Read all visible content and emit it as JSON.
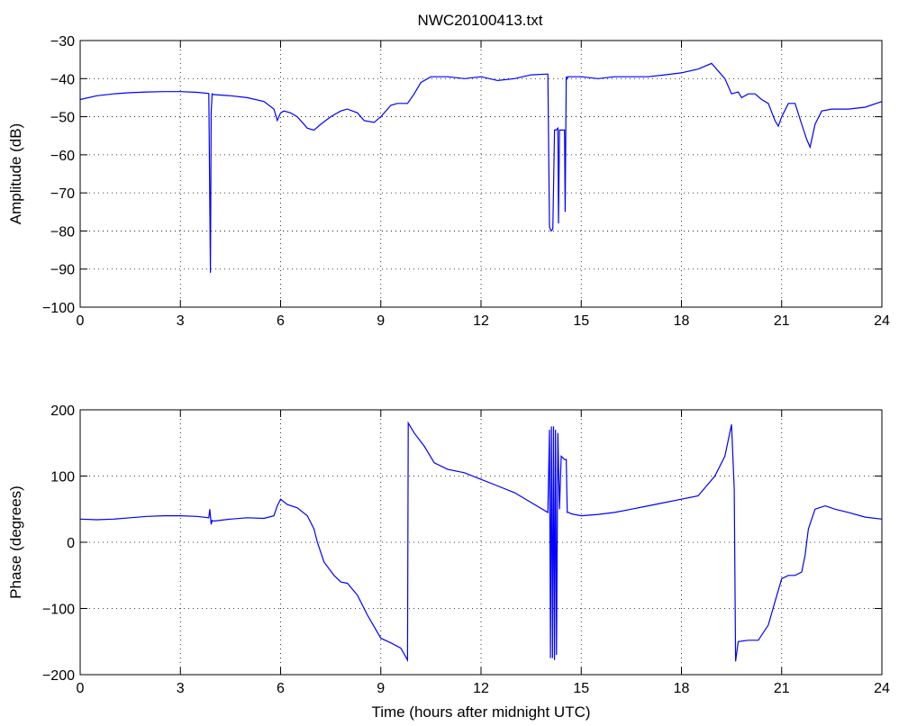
{
  "figure": {
    "title": "NWC20100413.txt",
    "line_color": "#0000ff"
  },
  "chart_data": [
    {
      "type": "line",
      "title": "NWC20100413.txt",
      "xlabel": "",
      "ylabel": "Amplitude (dB)",
      "xlim": [
        0,
        24
      ],
      "ylim": [
        -100,
        -30
      ],
      "xticks": [
        0,
        3,
        6,
        9,
        12,
        15,
        18,
        21,
        24
      ],
      "yticks": [
        -30,
        -40,
        -50,
        -60,
        -70,
        -80,
        -90,
        -100
      ],
      "grid": true,
      "series": [
        {
          "color": "#0000ff",
          "x": [
            0,
            0.5,
            1,
            1.5,
            2,
            2.5,
            3,
            3.5,
            3.85,
            3.9,
            3.92,
            3.95,
            4.0,
            4.5,
            5,
            5.5,
            5.8,
            5.9,
            6.0,
            6.1,
            6.3,
            6.5,
            6.8,
            7.0,
            7.2,
            7.5,
            7.8,
            8.0,
            8.3,
            8.5,
            8.8,
            9.0,
            9.3,
            9.5,
            9.8,
            10.0,
            10.2,
            10.5,
            11.0,
            11.5,
            12.0,
            12.5,
            13.0,
            13.5,
            14.0,
            14.05,
            14.1,
            14.15,
            14.2,
            14.25,
            14.3,
            14.32,
            14.35,
            14.4,
            14.5,
            14.52,
            14.55,
            14.58,
            14.6,
            15.0,
            15.5,
            16.0,
            16.5,
            17.0,
            17.5,
            18.0,
            18.5,
            18.9,
            19.1,
            19.3,
            19.5,
            19.7,
            19.8,
            20.0,
            20.2,
            20.4,
            20.6,
            20.8,
            20.9,
            21.0,
            21.2,
            21.4,
            21.6,
            21.75,
            21.85,
            22.0,
            22.2,
            22.5,
            23.0,
            23.5,
            24.0
          ],
          "y": [
            -45.5,
            -44.5,
            -44,
            -43.7,
            -43.5,
            -43.4,
            -43.4,
            -43.6,
            -43.9,
            -91,
            -49,
            -44,
            -44.2,
            -44.5,
            -45,
            -46,
            -48,
            -51,
            -49,
            -48.5,
            -49,
            -50,
            -53,
            -53.5,
            -52,
            -50,
            -48.5,
            -48,
            -49,
            -51,
            -51.5,
            -50,
            -47,
            -46.5,
            -46.5,
            -44,
            -41,
            -39.5,
            -39.5,
            -40,
            -39.5,
            -40.5,
            -40,
            -39,
            -38.8,
            -79,
            -80,
            -79.5,
            -53.5,
            -53.5,
            -53,
            -78,
            -53.5,
            -53.5,
            -53.5,
            -75,
            -39.5,
            -40,
            -39.5,
            -39.5,
            -40,
            -39.5,
            -39.5,
            -39.5,
            -39,
            -38.5,
            -37.5,
            -36,
            -38,
            -40,
            -44,
            -43.5,
            -45,
            -44,
            -44,
            -45.5,
            -46.5,
            -51,
            -52.5,
            -50,
            -46.5,
            -46.5,
            -52,
            -56,
            -58,
            -52,
            -48.5,
            -48,
            -48,
            -47.5,
            -46
          ]
        }
      ]
    },
    {
      "type": "line",
      "title": "",
      "xlabel": "Time (hours after midnight UTC)",
      "ylabel": "Phase (degrees)",
      "xlim": [
        0,
        24
      ],
      "ylim": [
        -200,
        200
      ],
      "xticks": [
        0,
        3,
        6,
        9,
        12,
        15,
        18,
        21,
        24
      ],
      "yticks": [
        200,
        100,
        0,
        -100,
        -200
      ],
      "grid": true,
      "series": [
        {
          "color": "#0000ff",
          "x": [
            0,
            0.5,
            1,
            1.5,
            2,
            2.5,
            3,
            3.5,
            3.85,
            3.88,
            3.92,
            3.95,
            4.0,
            4.5,
            5,
            5.5,
            5.8,
            5.9,
            6.0,
            6.2,
            6.5,
            6.8,
            7.0,
            7.1,
            7.3,
            7.6,
            7.8,
            8.0,
            8.3,
            8.6,
            9.0,
            9.3,
            9.6,
            9.8,
            9.82,
            10.0,
            10.3,
            10.6,
            11.0,
            11.5,
            12.0,
            12.5,
            13.0,
            13.5,
            14.0,
            14.05,
            14.08,
            14.11,
            14.14,
            14.17,
            14.2,
            14.23,
            14.26,
            14.3,
            14.35,
            14.4,
            14.5,
            14.55,
            14.58,
            14.62,
            14.7,
            15.0,
            15.5,
            16.0,
            16.5,
            17.0,
            17.5,
            18.0,
            18.5,
            19.0,
            19.3,
            19.5,
            19.58,
            19.62,
            19.7,
            20.0,
            20.3,
            20.6,
            20.8,
            21.0,
            21.2,
            21.4,
            21.6,
            21.7,
            21.8,
            22.0,
            22.3,
            22.6,
            23.0,
            23.5,
            24.0
          ],
          "y": [
            35,
            34,
            35,
            37,
            39,
            40,
            40,
            39,
            37,
            50,
            27,
            33,
            32,
            35,
            37,
            36,
            40,
            55,
            65,
            57,
            52,
            40,
            20,
            0,
            -30,
            -50,
            -60,
            -62,
            -80,
            -110,
            -145,
            -152,
            -160,
            -178,
            180,
            165,
            145,
            120,
            110,
            105,
            95,
            85,
            75,
            60,
            45,
            170,
            -175,
            175,
            -175,
            175,
            -178,
            170,
            -170,
            165,
            50,
            130,
            125,
            125,
            45,
            45,
            43,
            40,
            42,
            45,
            50,
            55,
            60,
            65,
            70,
            100,
            130,
            178,
            80,
            -180,
            -150,
            -148,
            -148,
            -125,
            -90,
            -55,
            -50,
            -50,
            -45,
            -20,
            20,
            50,
            55,
            50,
            45,
            38,
            35
          ]
        }
      ]
    }
  ]
}
